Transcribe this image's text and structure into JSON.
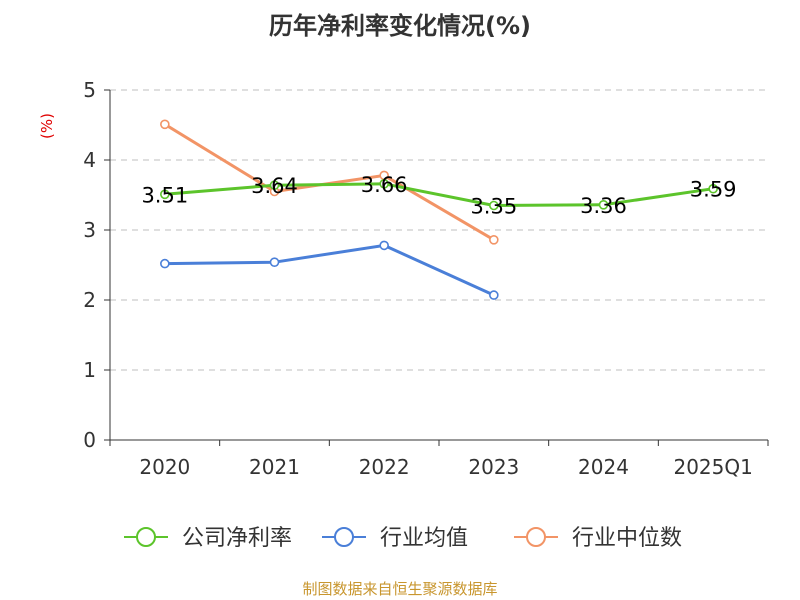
{
  "chart_data": {
    "type": "line",
    "title": "历年净利率变化情况(%)",
    "ylabel": "(%)",
    "xlabel": "",
    "categories": [
      "2020",
      "2021",
      "2022",
      "2023",
      "2024",
      "2025Q1"
    ],
    "ylim": [
      0,
      5
    ],
    "yticks": [
      0,
      1,
      2,
      3,
      4,
      5
    ],
    "grid": true,
    "legend_position": "bottom",
    "series": [
      {
        "name": "公司净利率",
        "color": "#5cc42b",
        "values": [
          3.51,
          3.64,
          3.66,
          3.35,
          3.36,
          3.59
        ],
        "labels": [
          "3.51",
          "3.64",
          "3.66",
          "3.35",
          "3.36",
          "3.59"
        ],
        "show_labels": true
      },
      {
        "name": "行业均值",
        "color": "#4a7fd8",
        "values": [
          2.52,
          2.54,
          2.78,
          2.07,
          null,
          null
        ],
        "show_labels": false
      },
      {
        "name": "行业中位数",
        "color": "#f29466",
        "values": [
          4.51,
          3.55,
          3.78,
          2.86,
          null,
          null
        ],
        "show_labels": false
      }
    ]
  },
  "source": "制图数据来自恒生聚源数据库",
  "colors": {
    "axis": "#333333",
    "grid": "#cccccc",
    "ylabel": "#e00000",
    "source": "#c8962e"
  }
}
